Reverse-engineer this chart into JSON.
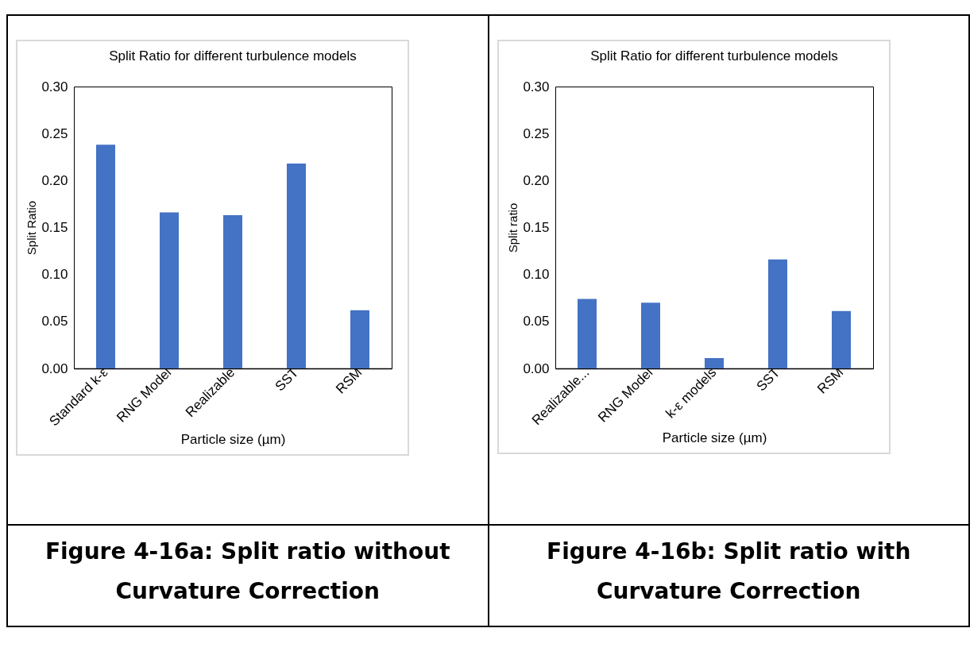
{
  "chart_data": [
    {
      "type": "bar",
      "title": "Split Ratio for different turbulence models",
      "xlabel": "Particle size (µm)",
      "ylabel": "Split Ratio",
      "categories": [
        "Standard k-ε",
        "RNG Model",
        "Realizable",
        "SST",
        "RSM"
      ],
      "values": [
        0.238,
        0.166,
        0.163,
        0.218,
        0.062
      ],
      "color": "#4472c4",
      "ylim": [
        0,
        0.3
      ],
      "yticks": [
        {
          "value": 0,
          "label": "0.00"
        },
        {
          "value": 0.05,
          "label": "0.05"
        },
        {
          "value": 0.1,
          "label": "0.10"
        },
        {
          "value": 0.15,
          "label": "0.15"
        },
        {
          "value": 0.2,
          "label": "0.20"
        },
        {
          "value": 0.25,
          "label": "0.25"
        },
        {
          "value": 0.3,
          "label": "0.30"
        }
      ],
      "annotations": [
        "Figure 4-16a: Split ratio without Curvature Correction"
      ]
    },
    {
      "type": "bar",
      "title": "Split Ratio for different turbulence models",
      "xlabel": "Particle size (µm)",
      "ylabel": "Split ratio",
      "categories": [
        "Realizable...",
        "RNG Model",
        "k-ε models",
        "SST",
        "RSM"
      ],
      "values": [
        0.074,
        0.07,
        0.011,
        0.116,
        0.061
      ],
      "color": "#4472c4",
      "ylim": [
        0,
        0.3
      ],
      "yticks": [
        {
          "value": 0,
          "label": "0.00"
        },
        {
          "value": 0.05,
          "label": "0.05"
        },
        {
          "value": 0.1,
          "label": "0.10"
        },
        {
          "value": 0.15,
          "label": "0.15"
        },
        {
          "value": 0.2,
          "label": "0.20"
        },
        {
          "value": 0.25,
          "label": "0.25"
        },
        {
          "value": 0.3,
          "label": "0.30"
        }
      ],
      "annotations": [
        "Figure 4-16b: Split ratio with Curvature Correction"
      ]
    }
  ]
}
